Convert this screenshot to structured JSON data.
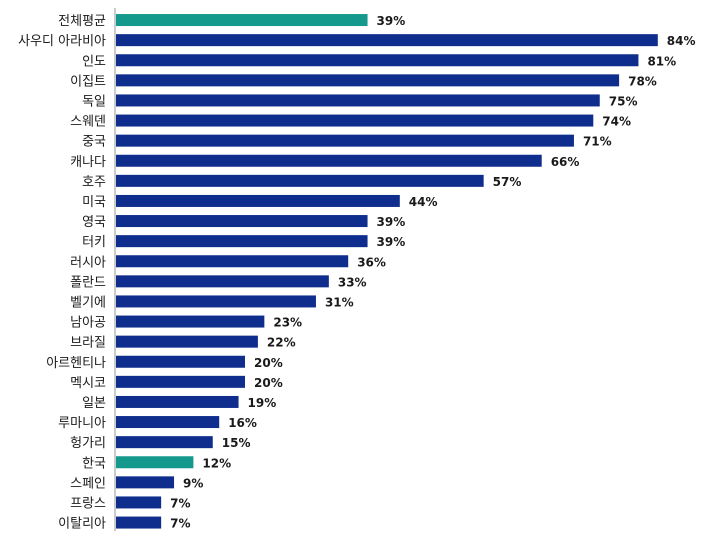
{
  "chart_data": {
    "type": "bar",
    "orientation": "horizontal",
    "categories": [
      "전체평균",
      "사우디 아라비아",
      "인도",
      "이집트",
      "독일",
      "스웨덴",
      "중국",
      "캐나다",
      "호주",
      "미국",
      "영국",
      "터키",
      "러시아",
      "폴란드",
      "벨기에",
      "남아공",
      "브라질",
      "아르헨티나",
      "멕시코",
      "일본",
      "루마니아",
      "헝가리",
      "한국",
      "스페인",
      "프랑스",
      "이탈리아"
    ],
    "values": [
      39,
      84,
      81,
      78,
      75,
      74,
      71,
      66,
      57,
      44,
      39,
      39,
      36,
      33,
      31,
      23,
      22,
      20,
      20,
      19,
      16,
      15,
      12,
      9,
      7,
      7
    ],
    "value_labels": [
      "39%",
      "84%",
      "81%",
      "78%",
      "75%",
      "74%",
      "71%",
      "66%",
      "57%",
      "44%",
      "39%",
      "39%",
      "36%",
      "33%",
      "31%",
      "23%",
      "22%",
      "20%",
      "20%",
      "19%",
      "16%",
      "15%",
      "12%",
      "9%",
      "7%",
      "7%"
    ],
    "unit": "%",
    "xlim": [
      0,
      100
    ],
    "grid": false,
    "legend": "none",
    "highlighted_categories": [
      "전체평균",
      "한국"
    ],
    "colors": {
      "default_bar": "#0f2d8c",
      "highlight_bar": "#14998c",
      "axis": "#999999"
    }
  }
}
